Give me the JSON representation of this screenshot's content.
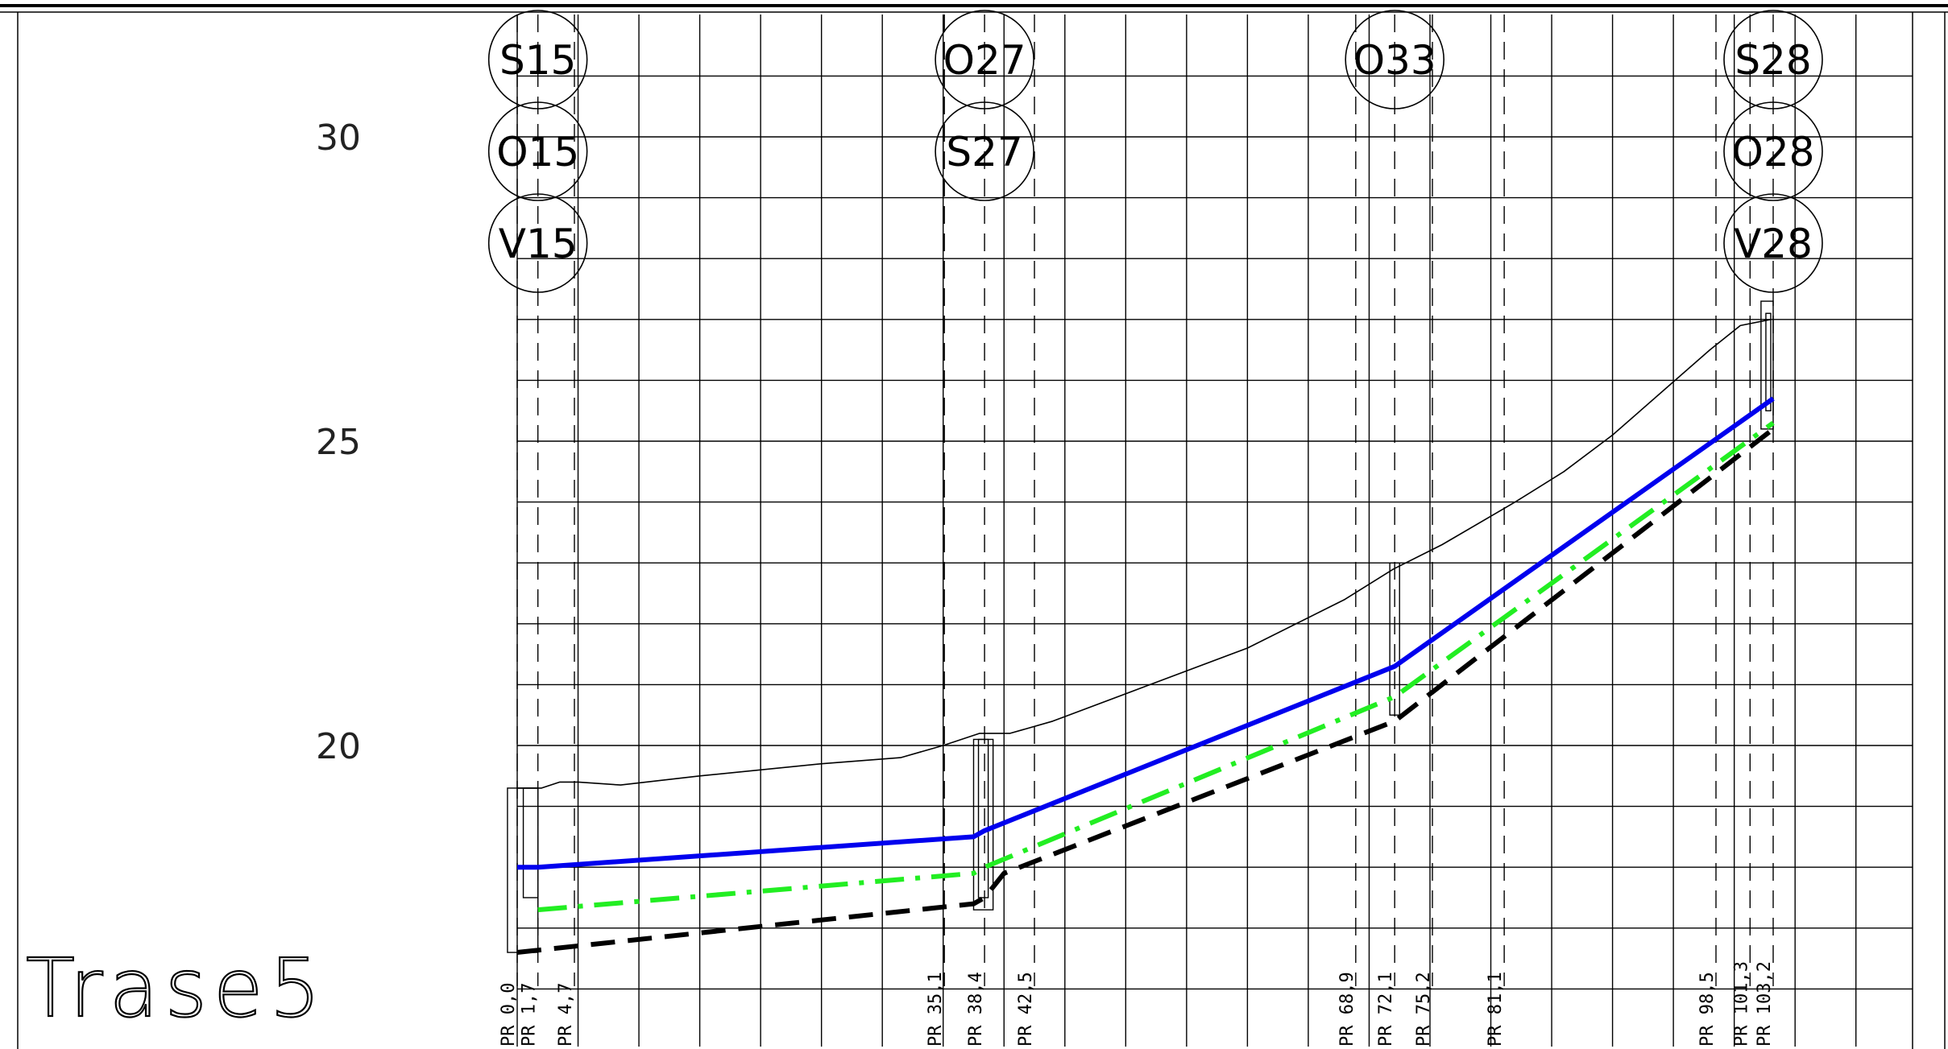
{
  "title": "Trase5",
  "y_axis": {
    "labels": [
      "30",
      "25",
      "20"
    ],
    "values": [
      30,
      25,
      20
    ],
    "min": 15,
    "max": 31.5
  },
  "x_axis": {
    "min": 0,
    "max": 103.2
  },
  "colors": {
    "pipe_top": "#0000ee",
    "pipe_middle": "#22ee22",
    "pipe_bottom": "#000000",
    "terrain": "#000000",
    "grid": "#000000"
  },
  "nodes": [
    {
      "station": 1.7,
      "labels": [
        "S15",
        "O15",
        "V15"
      ]
    },
    {
      "station": 38.4,
      "labels": [
        "O27",
        "S27"
      ]
    },
    {
      "station": 72.1,
      "labels": [
        "O33"
      ]
    },
    {
      "station": 103.2,
      "labels": [
        "S28",
        "O28",
        "V28"
      ]
    }
  ],
  "profile_marks": [
    {
      "label": "PR 0,0",
      "x": 0.0
    },
    {
      "label": "PR 1,7",
      "x": 1.7
    },
    {
      "label": "PR 4,7",
      "x": 4.7
    },
    {
      "label": "PR 35,1",
      "x": 35.1
    },
    {
      "label": "PR 38,4",
      "x": 38.4
    },
    {
      "label": "PR 42,5",
      "x": 42.5
    },
    {
      "label": "PR 68,9",
      "x": 68.9
    },
    {
      "label": "PR 72,1",
      "x": 72.1
    },
    {
      "label": "PR 75,2",
      "x": 75.2
    },
    {
      "label": "PR 81,1",
      "x": 81.1
    },
    {
      "label": "PR 98,5",
      "x": 98.5
    },
    {
      "label": "PR 101,3",
      "x": 101.3
    },
    {
      "label": "PR 103,2",
      "x": 103.2
    }
  ],
  "chart_data": {
    "type": "line",
    "title": "Trase5",
    "xlabel": "",
    "ylabel": "",
    "ylim": [
      15,
      31.5
    ],
    "xlim": [
      0,
      103.2
    ],
    "grid": true,
    "series": [
      {
        "line": "solid-blue",
        "x": [
          0.0,
          1.7,
          37.5,
          38.4,
          72.1,
          103.2
        ],
        "y": [
          18.0,
          18.0,
          18.5,
          18.6,
          21.3,
          25.7
        ]
      },
      {
        "line": "dashed-green",
        "x": [
          1.7,
          37.5,
          38.4,
          72.1,
          103.2
        ],
        "y": [
          17.3,
          17.9,
          18.0,
          20.8,
          25.3
        ]
      },
      {
        "line": "dashed-black",
        "x": [
          0.0,
          37.5,
          38.4,
          40.0,
          72.1,
          103.2
        ],
        "y": [
          16.6,
          17.4,
          17.5,
          17.9,
          20.4,
          25.2
        ]
      },
      {
        "line": "terrain",
        "x": [
          0.0,
          2.0,
          3.5,
          5.0,
          8.5,
          15.0,
          25.0,
          31.5,
          35.0,
          38.0,
          40.5,
          44.0,
          52.0,
          60.0,
          68.0,
          72.0,
          76.0,
          82.0,
          86.0,
          90.0,
          94.0,
          98.0,
          100.5,
          103.0
        ],
        "y": [
          19.3,
          19.3,
          19.4,
          19.4,
          19.35,
          19.5,
          19.7,
          19.8,
          20.0,
          20.2,
          20.2,
          20.4,
          21.0,
          21.6,
          22.4,
          22.9,
          23.3,
          24.0,
          24.5,
          25.1,
          25.8,
          26.5,
          26.9,
          27.0
        ]
      }
    ]
  }
}
